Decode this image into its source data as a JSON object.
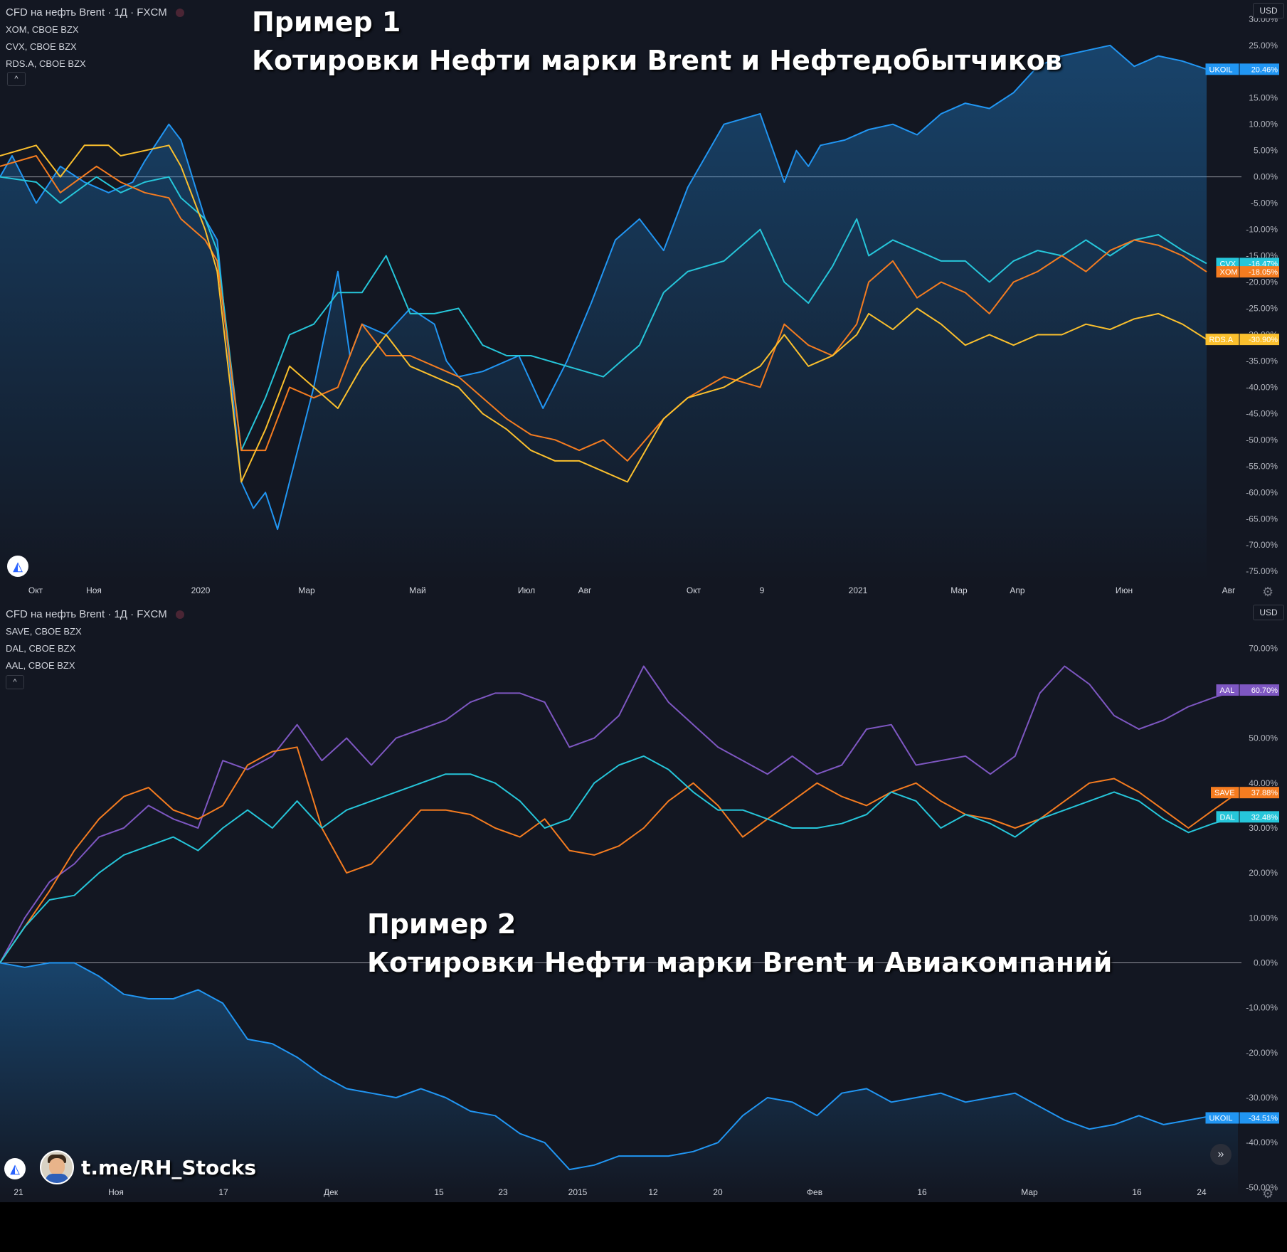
{
  "chart_data": [
    {
      "type": "line",
      "title": "Пример 1\nКотировки Нефти марки Brent и Нефтедобытчиков",
      "title_lines": [
        "Пример 1",
        "Котировки Нефти марки Brent и Нефтедобытчиков"
      ],
      "main_symbol": "CFD на нефть Brent · 1Д · FXCM",
      "compare_symbols": [
        "XOM, CBOE BZX",
        "CVX, CBOE BZX",
        "RDS.A, CBOE BZX"
      ],
      "currency": "USD",
      "x_tick_labels": [
        "Окт",
        "Ноя",
        "2020",
        "Мар",
        "Май",
        "Июл",
        "Авг",
        "Окт",
        "9",
        "2021",
        "Мар",
        "Апр",
        "Июн",
        "Авг"
      ],
      "y_tick_labels": [
        "30.00%",
        "25.00%",
        "20.00%",
        "15.00%",
        "10.00%",
        "5.00%",
        "0.00%",
        "-5.00%",
        "-10.00%",
        "-15.00%",
        "-20.00%",
        "-25.00%",
        "-30.00%",
        "-35.00%",
        "-40.00%",
        "-45.00%",
        "-50.00%",
        "-55.00%",
        "-60.00%",
        "-65.00%",
        "-70.00%",
        "-75.00%"
      ],
      "ylim": [
        -77,
        32
      ],
      "ylabel_unit": "%",
      "grid": false,
      "series": [
        {
          "name": "UKOIL",
          "color": "#2196f3",
          "area": true,
          "last_label": "20.46%",
          "x": [
            0,
            1,
            3,
            5,
            7,
            9,
            11,
            12,
            14,
            15,
            17,
            18,
            20,
            21,
            22,
            23,
            24,
            26,
            28,
            29,
            30,
            32,
            34,
            36,
            37,
            38,
            40,
            43,
            45,
            47,
            49,
            51,
            53,
            55,
            57,
            60,
            63,
            65,
            66,
            67,
            68,
            70,
            72,
            74,
            76,
            78,
            80,
            82,
            84,
            86,
            88,
            90,
            92,
            94,
            96,
            98,
            100
          ],
          "y": [
            0,
            4,
            -5,
            2,
            -1,
            -3,
            -1,
            3,
            10,
            7,
            -8,
            -12,
            -58,
            -63,
            -60,
            -67,
            -58,
            -40,
            -18,
            -34,
            -28,
            -30,
            -25,
            -28,
            -35,
            -38,
            -37,
            -34,
            -44,
            -35,
            -24,
            -12,
            -8,
            -14,
            -2,
            10,
            12,
            -1,
            5,
            2,
            6,
            7,
            9,
            10,
            8,
            12,
            14,
            13,
            16,
            21,
            23,
            24,
            25,
            21,
            23,
            22,
            20.46
          ]
        },
        {
          "name": "CVX",
          "color": "#26c6da",
          "area": false,
          "last_label": "-16.47%",
          "x": [
            0,
            3,
            5,
            8,
            10,
            12,
            14,
            15,
            17,
            18,
            20,
            22,
            24,
            26,
            28,
            30,
            32,
            34,
            36,
            38,
            40,
            42,
            44,
            47,
            50,
            53,
            55,
            57,
            60,
            63,
            65,
            67,
            69,
            71,
            72,
            74,
            76,
            78,
            80,
            82,
            84,
            86,
            88,
            90,
            92,
            94,
            96,
            98,
            100
          ],
          "y": [
            0,
            -1,
            -5,
            0,
            -3,
            -1,
            0,
            -4,
            -8,
            -14,
            -52,
            -42,
            -30,
            -28,
            -22,
            -22,
            -15,
            -26,
            -26,
            -25,
            -32,
            -34,
            -34,
            -36,
            -38,
            -32,
            -22,
            -18,
            -16,
            -10,
            -20,
            -24,
            -17,
            -8,
            -15,
            -12,
            -14,
            -16,
            -16,
            -20,
            -16,
            -14,
            -15,
            -12,
            -15,
            -12,
            -11,
            -14,
            -16.47
          ]
        },
        {
          "name": "XOM",
          "color": "#f57c20",
          "area": false,
          "last_label": "-18.05%",
          "x": [
            0,
            3,
            5,
            8,
            10,
            12,
            14,
            15,
            17,
            18,
            20,
            22,
            24,
            26,
            28,
            30,
            32,
            34,
            36,
            38,
            40,
            42,
            44,
            46,
            48,
            50,
            52,
            55,
            57,
            60,
            63,
            65,
            67,
            69,
            71,
            72,
            74,
            76,
            78,
            80,
            82,
            84,
            86,
            88,
            90,
            92,
            94,
            96,
            98,
            100
          ],
          "y": [
            2,
            4,
            -3,
            2,
            -1,
            -3,
            -4,
            -8,
            -12,
            -16,
            -52,
            -52,
            -40,
            -42,
            -40,
            -28,
            -34,
            -34,
            -36,
            -38,
            -42,
            -46,
            -49,
            -50,
            -52,
            -50,
            -54,
            -46,
            -42,
            -38,
            -40,
            -28,
            -32,
            -34,
            -28,
            -20,
            -16,
            -23,
            -20,
            -22,
            -26,
            -20,
            -18,
            -15,
            -18,
            -14,
            -12,
            -13,
            -15,
            -18.05
          ]
        },
        {
          "name": "RDS.A",
          "color": "#fbc02d",
          "area": false,
          "last_label": "-30.90%",
          "x": [
            0,
            3,
            5,
            7,
            9,
            10,
            12,
            14,
            15,
            17,
            18,
            20,
            22,
            24,
            26,
            28,
            30,
            32,
            34,
            36,
            38,
            40,
            42,
            44,
            46,
            48,
            50,
            52,
            55,
            57,
            60,
            63,
            65,
            67,
            69,
            71,
            72,
            74,
            76,
            78,
            80,
            82,
            84,
            86,
            88,
            90,
            92,
            94,
            96,
            98,
            100
          ],
          "y": [
            4,
            6,
            0,
            6,
            6,
            4,
            5,
            6,
            2,
            -10,
            -18,
            -58,
            -48,
            -36,
            -40,
            -44,
            -36,
            -30,
            -36,
            -38,
            -40,
            -45,
            -48,
            -52,
            -54,
            -54,
            -56,
            -58,
            -46,
            -42,
            -40,
            -36,
            -30,
            -36,
            -34,
            -30,
            -26,
            -29,
            -25,
            -28,
            -32,
            -30,
            -32,
            -30,
            -30,
            -28,
            -29,
            -27,
            -26,
            -28,
            -30.9
          ]
        }
      ]
    },
    {
      "type": "line",
      "title": "Пример 2\nКотировки Нефти марки Brent и Авиакомпаний",
      "title_lines": [
        "Пример 2",
        "Котировки Нефти марки Brent и Авиакомпаний"
      ],
      "main_symbol": "CFD на нефть Brent · 1Д · FXCM",
      "compare_symbols": [
        "SAVE, CBOE BZX",
        "DAL, CBOE BZX",
        "AAL, CBOE BZX"
      ],
      "currency": "USD",
      "x_tick_labels": [
        "21",
        "Ноя",
        "17",
        "Дек",
        "15",
        "23",
        "2015",
        "12",
        "20",
        "Фев",
        "16",
        "Мар",
        "16",
        "24"
      ],
      "y_tick_labels": [
        "70.00%",
        "50.00%",
        "40.00%",
        "30.00%",
        "20.00%",
        "10.00%",
        "0.00%",
        "-10.00%",
        "-20.00%",
        "-30.00%",
        "-40.00%",
        "-50.00%"
      ],
      "ylim": [
        -52,
        74
      ],
      "ylabel_unit": "%",
      "grid": false,
      "series": [
        {
          "name": "AAL",
          "color": "#7e57c2",
          "area": false,
          "last_label": "60.70%",
          "x": [
            0,
            2,
            4,
            6,
            8,
            10,
            12,
            14,
            16,
            18,
            20,
            22,
            24,
            26,
            28,
            30,
            32,
            34,
            36,
            38,
            40,
            42,
            44,
            46,
            48,
            50,
            52,
            54,
            56,
            58,
            60,
            62,
            64,
            66,
            68,
            70,
            72,
            74,
            76,
            78,
            80,
            82,
            84,
            86,
            88,
            90,
            92,
            94,
            96,
            98,
            100
          ],
          "y": [
            0,
            10,
            18,
            22,
            28,
            30,
            35,
            32,
            30,
            45,
            43,
            46,
            53,
            45,
            50,
            44,
            50,
            52,
            54,
            58,
            60,
            60,
            58,
            48,
            50,
            55,
            66,
            58,
            53,
            48,
            45,
            42,
            46,
            42,
            44,
            52,
            53,
            44,
            45,
            46,
            42,
            46,
            60,
            66,
            62,
            55,
            52,
            54,
            57,
            59,
            60.7
          ]
        },
        {
          "name": "SAVE",
          "color": "#f57c20",
          "area": false,
          "last_label": "37.88%",
          "x": [
            0,
            2,
            4,
            6,
            8,
            10,
            12,
            14,
            16,
            18,
            20,
            22,
            24,
            26,
            28,
            30,
            32,
            34,
            36,
            38,
            40,
            42,
            44,
            46,
            48,
            50,
            52,
            54,
            56,
            58,
            60,
            62,
            64,
            66,
            68,
            70,
            72,
            74,
            76,
            78,
            80,
            82,
            84,
            86,
            88,
            90,
            92,
            94,
            96,
            98,
            100
          ],
          "y": [
            0,
            8,
            16,
            25,
            32,
            37,
            39,
            34,
            32,
            35,
            44,
            47,
            48,
            30,
            20,
            22,
            28,
            34,
            34,
            33,
            30,
            28,
            32,
            25,
            24,
            26,
            30,
            36,
            40,
            35,
            28,
            32,
            36,
            40,
            37,
            35,
            38,
            40,
            36,
            33,
            32,
            30,
            32,
            36,
            40,
            41,
            38,
            34,
            30,
            34,
            37.88
          ]
        },
        {
          "name": "DAL",
          "color": "#26c6da",
          "area": false,
          "last_label": "32.48%",
          "x": [
            0,
            2,
            4,
            6,
            8,
            10,
            12,
            14,
            16,
            18,
            20,
            22,
            24,
            26,
            28,
            30,
            32,
            34,
            36,
            38,
            40,
            42,
            44,
            46,
            48,
            50,
            52,
            54,
            56,
            58,
            60,
            62,
            64,
            66,
            68,
            70,
            72,
            74,
            76,
            78,
            80,
            82,
            84,
            86,
            88,
            90,
            92,
            94,
            96,
            98,
            100
          ],
          "y": [
            0,
            8,
            14,
            15,
            20,
            24,
            26,
            28,
            25,
            30,
            34,
            30,
            36,
            30,
            34,
            36,
            38,
            40,
            42,
            42,
            40,
            36,
            30,
            32,
            40,
            44,
            46,
            43,
            38,
            34,
            34,
            32,
            30,
            30,
            31,
            33,
            38,
            36,
            30,
            33,
            31,
            28,
            32,
            34,
            36,
            38,
            36,
            32,
            29,
            31,
            32.48
          ]
        },
        {
          "name": "UKOIL",
          "color": "#2196f3",
          "area": true,
          "last_label": "-34.51%",
          "x": [
            0,
            2,
            4,
            6,
            8,
            10,
            12,
            14,
            16,
            18,
            20,
            22,
            24,
            26,
            28,
            30,
            32,
            34,
            36,
            38,
            40,
            42,
            44,
            46,
            48,
            50,
            52,
            54,
            56,
            58,
            60,
            62,
            64,
            66,
            68,
            70,
            72,
            74,
            76,
            78,
            80,
            82,
            84,
            86,
            88,
            90,
            92,
            94,
            96,
            98,
            100
          ],
          "y": [
            0,
            -1,
            0,
            0,
            -3,
            -7,
            -8,
            -8,
            -6,
            -9,
            -17,
            -18,
            -21,
            -25,
            -28,
            -29,
            -30,
            -28,
            -30,
            -33,
            -34,
            -38,
            -40,
            -46,
            -45,
            -43,
            -43,
            -43,
            -42,
            -40,
            -34,
            -30,
            -31,
            -34,
            -29,
            -28,
            -31,
            -30,
            -29,
            -31,
            -30,
            -29,
            -32,
            -35,
            -37,
            -36,
            -34,
            -36,
            -35,
            -34,
            -34.51
          ]
        }
      ]
    }
  ],
  "ui": {
    "collapse_glyph": "^",
    "settings_icon": "gear-icon",
    "logo_icon": "tradingview-logo-icon",
    "nav_glyph": "»",
    "watermark_text": "t.me/RH_Stocks"
  }
}
